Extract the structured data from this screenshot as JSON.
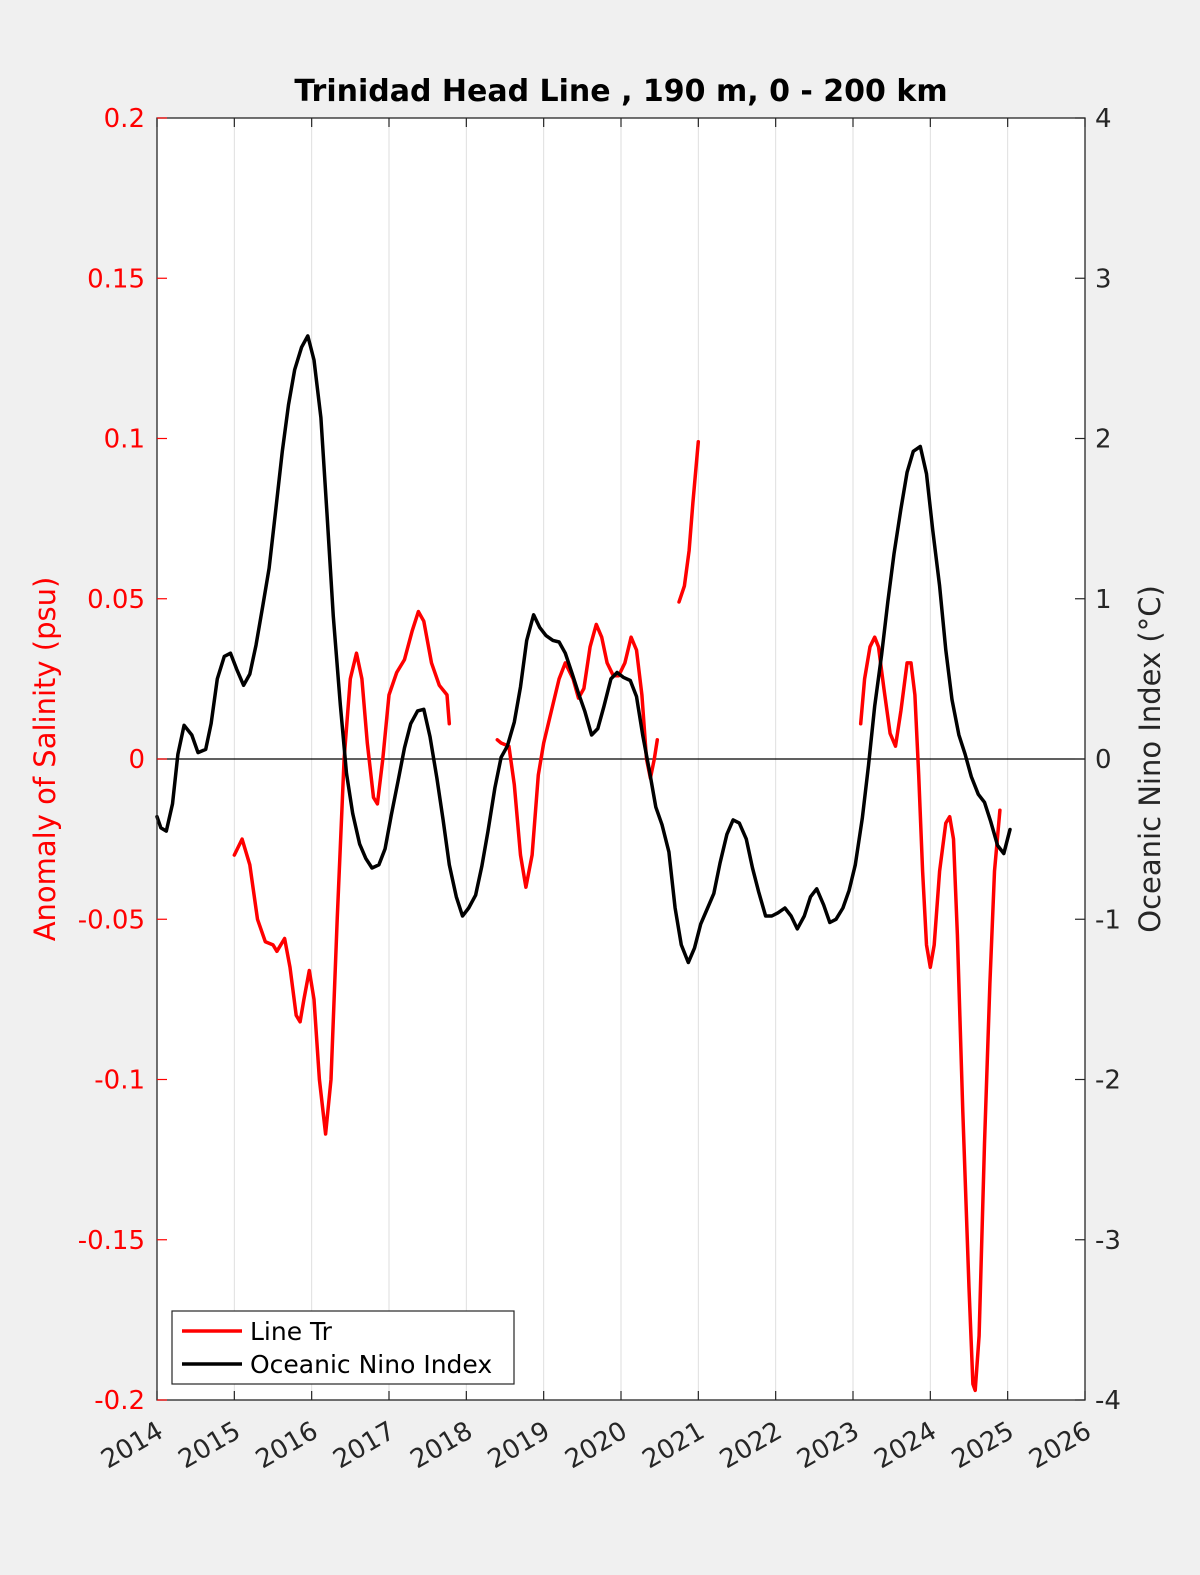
{
  "chart_data": {
    "type": "line",
    "title": "Trinidad Head Line , 190 m, 0 - 200 km",
    "ylabel_left": "Anomaly of Salinity (psu)",
    "ylabel_right": "Oceanic Nino Index (°C)",
    "xlabel": "",
    "xlim": [
      2014,
      2026
    ],
    "ylim_left": [
      -0.2,
      0.2
    ],
    "ylim_right": [
      -4,
      4
    ],
    "x_ticks": [
      "2014",
      "2015",
      "2016",
      "2017",
      "2018",
      "2019",
      "2020",
      "2021",
      "2022",
      "2023",
      "2024",
      "2025",
      "2026"
    ],
    "y_ticks_left": [
      "0.2",
      "0.15",
      "0.1",
      "0.05",
      "0",
      "-0.05",
      "-0.1",
      "-0.15",
      "-0.2"
    ],
    "y_ticks_right": [
      "4",
      "3",
      "2",
      "1",
      "0",
      "-1",
      "-2",
      "-3",
      "-4"
    ],
    "grid": "vertical",
    "legend_position": "bottom-left",
    "series": [
      {
        "name": "Line Tr",
        "axis": "left",
        "color": "#ff0000",
        "segments": [
          [
            [
              2015.0,
              -0.03
            ],
            [
              2015.1,
              -0.025
            ],
            [
              2015.2,
              -0.033
            ],
            [
              2015.3,
              -0.05
            ],
            [
              2015.4,
              -0.057
            ],
            [
              2015.5,
              -0.058
            ],
            [
              2015.55,
              -0.06
            ],
            [
              2015.65,
              -0.056
            ],
            [
              2015.72,
              -0.065
            ],
            [
              2015.8,
              -0.08
            ],
            [
              2015.85,
              -0.082
            ],
            [
              2015.9,
              -0.075
            ],
            [
              2015.97,
              -0.066
            ],
            [
              2016.03,
              -0.075
            ],
            [
              2016.1,
              -0.1
            ],
            [
              2016.18,
              -0.117
            ],
            [
              2016.25,
              -0.1
            ],
            [
              2016.33,
              -0.05
            ],
            [
              2016.42,
              0.0
            ],
            [
              2016.5,
              0.025
            ],
            [
              2016.58,
              0.033
            ],
            [
              2016.65,
              0.025
            ],
            [
              2016.72,
              0.005
            ],
            [
              2016.8,
              -0.012
            ],
            [
              2016.85,
              -0.014
            ],
            [
              2016.92,
              0.0
            ],
            [
              2017.0,
              0.02
            ],
            [
              2017.1,
              0.027
            ],
            [
              2017.2,
              0.031
            ],
            [
              2017.3,
              0.04
            ],
            [
              2017.38,
              0.046
            ],
            [
              2017.45,
              0.043
            ],
            [
              2017.55,
              0.03
            ],
            [
              2017.65,
              0.023
            ],
            [
              2017.75,
              0.02
            ],
            [
              2017.78,
              0.011
            ]
          ],
          [
            [
              2018.4,
              0.006
            ],
            [
              2018.45,
              0.005
            ],
            [
              2018.55,
              0.004
            ],
            [
              2018.62,
              -0.008
            ],
            [
              2018.7,
              -0.03
            ],
            [
              2018.77,
              -0.04
            ],
            [
              2018.85,
              -0.03
            ],
            [
              2018.93,
              -0.005
            ],
            [
              2019.0,
              0.005
            ],
            [
              2019.1,
              0.015
            ],
            [
              2019.2,
              0.025
            ],
            [
              2019.28,
              0.03
            ],
            [
              2019.38,
              0.025
            ],
            [
              2019.45,
              0.019
            ],
            [
              2019.52,
              0.022
            ],
            [
              2019.6,
              0.035
            ],
            [
              2019.68,
              0.042
            ],
            [
              2019.75,
              0.038
            ],
            [
              2019.82,
              0.03
            ],
            [
              2019.9,
              0.026
            ],
            [
              2019.97,
              0.026
            ],
            [
              2020.05,
              0.03
            ],
            [
              2020.13,
              0.038
            ],
            [
              2020.2,
              0.034
            ],
            [
              2020.27,
              0.02
            ],
            [
              2020.33,
              0.0
            ],
            [
              2020.38,
              -0.006
            ],
            [
              2020.43,
              0.0
            ],
            [
              2020.47,
              0.006
            ]
          ],
          [
            [
              2020.75,
              0.049
            ],
            [
              2020.82,
              0.054
            ],
            [
              2020.88,
              0.065
            ],
            [
              2020.93,
              0.08
            ],
            [
              2021.0,
              0.099
            ]
          ],
          [
            [
              2023.1,
              0.011
            ],
            [
              2023.15,
              0.025
            ],
            [
              2023.22,
              0.035
            ],
            [
              2023.28,
              0.038
            ],
            [
              2023.33,
              0.035
            ],
            [
              2023.4,
              0.022
            ],
            [
              2023.48,
              0.008
            ],
            [
              2023.55,
              0.004
            ],
            [
              2023.62,
              0.015
            ],
            [
              2023.7,
              0.03
            ],
            [
              2023.75,
              0.03
            ],
            [
              2023.8,
              0.02
            ],
            [
              2023.85,
              -0.005
            ],
            [
              2023.9,
              -0.035
            ],
            [
              2023.95,
              -0.058
            ],
            [
              2024.0,
              -0.065
            ],
            [
              2024.05,
              -0.058
            ],
            [
              2024.12,
              -0.035
            ],
            [
              2024.2,
              -0.02
            ],
            [
              2024.25,
              -0.018
            ],
            [
              2024.3,
              -0.025
            ],
            [
              2024.35,
              -0.055
            ],
            [
              2024.42,
              -0.11
            ],
            [
              2024.5,
              -0.165
            ],
            [
              2024.55,
              -0.195
            ],
            [
              2024.58,
              -0.197
            ],
            [
              2024.63,
              -0.18
            ],
            [
              2024.7,
              -0.12
            ],
            [
              2024.77,
              -0.07
            ],
            [
              2024.83,
              -0.035
            ],
            [
              2024.9,
              -0.016
            ]
          ]
        ]
      },
      {
        "name": "Oceanic Nino Index",
        "axis": "right",
        "color": "#000000",
        "segments": [
          [
            [
              2014.0,
              -0.36
            ],
            [
              2014.05,
              -0.43
            ],
            [
              2014.12,
              -0.45
            ],
            [
              2014.2,
              -0.28
            ],
            [
              2014.27,
              0.03
            ],
            [
              2014.35,
              0.21
            ],
            [
              2014.45,
              0.15
            ],
            [
              2014.53,
              0.04
            ],
            [
              2014.63,
              0.06
            ],
            [
              2014.7,
              0.22
            ],
            [
              2014.78,
              0.5
            ],
            [
              2014.87,
              0.64
            ],
            [
              2014.95,
              0.66
            ],
            [
              2015.03,
              0.56
            ],
            [
              2015.12,
              0.46
            ],
            [
              2015.2,
              0.53
            ],
            [
              2015.28,
              0.71
            ],
            [
              2015.37,
              0.96
            ],
            [
              2015.45,
              1.19
            ],
            [
              2015.53,
              1.53
            ],
            [
              2015.62,
              1.92
            ],
            [
              2015.7,
              2.21
            ],
            [
              2015.78,
              2.43
            ],
            [
              2015.87,
              2.57
            ],
            [
              2015.95,
              2.64
            ],
            [
              2016.03,
              2.49
            ],
            [
              2016.12,
              2.13
            ],
            [
              2016.2,
              1.52
            ],
            [
              2016.28,
              0.89
            ],
            [
              2016.37,
              0.34
            ],
            [
              2016.45,
              -0.09
            ],
            [
              2016.53,
              -0.34
            ],
            [
              2016.62,
              -0.53
            ],
            [
              2016.7,
              -0.62
            ],
            [
              2016.78,
              -0.68
            ],
            [
              2016.87,
              -0.66
            ],
            [
              2016.95,
              -0.56
            ],
            [
              2017.03,
              -0.35
            ],
            [
              2017.12,
              -0.13
            ],
            [
              2017.2,
              0.07
            ],
            [
              2017.28,
              0.22
            ],
            [
              2017.37,
              0.3
            ],
            [
              2017.45,
              0.31
            ],
            [
              2017.53,
              0.14
            ],
            [
              2017.62,
              -0.12
            ],
            [
              2017.7,
              -0.38
            ],
            [
              2017.78,
              -0.66
            ],
            [
              2017.87,
              -0.86
            ],
            [
              2017.95,
              -0.98
            ],
            [
              2018.03,
              -0.93
            ],
            [
              2018.12,
              -0.85
            ],
            [
              2018.2,
              -0.67
            ],
            [
              2018.28,
              -0.45
            ],
            [
              2018.37,
              -0.18
            ],
            [
              2018.45,
              0.01
            ],
            [
              2018.53,
              0.08
            ],
            [
              2018.62,
              0.23
            ],
            [
              2018.7,
              0.45
            ],
            [
              2018.78,
              0.74
            ],
            [
              2018.87,
              0.9
            ],
            [
              2018.95,
              0.82
            ],
            [
              2019.03,
              0.77
            ],
            [
              2019.12,
              0.74
            ],
            [
              2019.2,
              0.73
            ],
            [
              2019.28,
              0.66
            ],
            [
              2019.37,
              0.53
            ],
            [
              2019.45,
              0.41
            ],
            [
              2019.53,
              0.3
            ],
            [
              2019.62,
              0.15
            ],
            [
              2019.7,
              0.19
            ],
            [
              2019.78,
              0.33
            ],
            [
              2019.87,
              0.5
            ],
            [
              2019.95,
              0.54
            ],
            [
              2020.03,
              0.51
            ],
            [
              2020.12,
              0.49
            ],
            [
              2020.2,
              0.39
            ],
            [
              2020.28,
              0.15
            ],
            [
              2020.37,
              -0.08
            ],
            [
              2020.45,
              -0.3
            ],
            [
              2020.53,
              -0.41
            ],
            [
              2020.62,
              -0.58
            ],
            [
              2020.7,
              -0.93
            ],
            [
              2020.78,
              -1.16
            ],
            [
              2020.87,
              -1.27
            ],
            [
              2020.95,
              -1.18
            ],
            [
              2021.03,
              -1.03
            ],
            [
              2021.12,
              -0.93
            ],
            [
              2021.2,
              -0.84
            ],
            [
              2021.28,
              -0.65
            ],
            [
              2021.37,
              -0.47
            ],
            [
              2021.45,
              -0.38
            ],
            [
              2021.53,
              -0.4
            ],
            [
              2021.62,
              -0.5
            ],
            [
              2021.7,
              -0.68
            ],
            [
              2021.78,
              -0.83
            ],
            [
              2021.87,
              -0.98
            ],
            [
              2021.95,
              -0.98
            ],
            [
              2022.03,
              -0.96
            ],
            [
              2022.12,
              -0.93
            ],
            [
              2022.2,
              -0.98
            ],
            [
              2022.28,
              -1.06
            ],
            [
              2022.37,
              -0.98
            ],
            [
              2022.45,
              -0.86
            ],
            [
              2022.53,
              -0.81
            ],
            [
              2022.62,
              -0.91
            ],
            [
              2022.7,
              -1.02
            ],
            [
              2022.78,
              -1.0
            ],
            [
              2022.87,
              -0.93
            ],
            [
              2022.95,
              -0.82
            ],
            [
              2023.03,
              -0.66
            ],
            [
              2023.12,
              -0.37
            ],
            [
              2023.2,
              -0.04
            ],
            [
              2023.28,
              0.33
            ],
            [
              2023.37,
              0.65
            ],
            [
              2023.45,
              0.98
            ],
            [
              2023.53,
              1.28
            ],
            [
              2023.62,
              1.56
            ],
            [
              2023.7,
              1.79
            ],
            [
              2023.78,
              1.92
            ],
            [
              2023.87,
              1.95
            ],
            [
              2023.95,
              1.78
            ],
            [
              2024.03,
              1.43
            ],
            [
              2024.12,
              1.08
            ],
            [
              2024.2,
              0.68
            ],
            [
              2024.28,
              0.37
            ],
            [
              2024.37,
              0.15
            ],
            [
              2024.45,
              0.03
            ],
            [
              2024.53,
              -0.11
            ],
            [
              2024.62,
              -0.22
            ],
            [
              2024.7,
              -0.27
            ],
            [
              2024.78,
              -0.39
            ],
            [
              2024.87,
              -0.54
            ],
            [
              2024.95,
              -0.59
            ],
            [
              2025.03,
              -0.44
            ]
          ]
        ]
      }
    ]
  }
}
